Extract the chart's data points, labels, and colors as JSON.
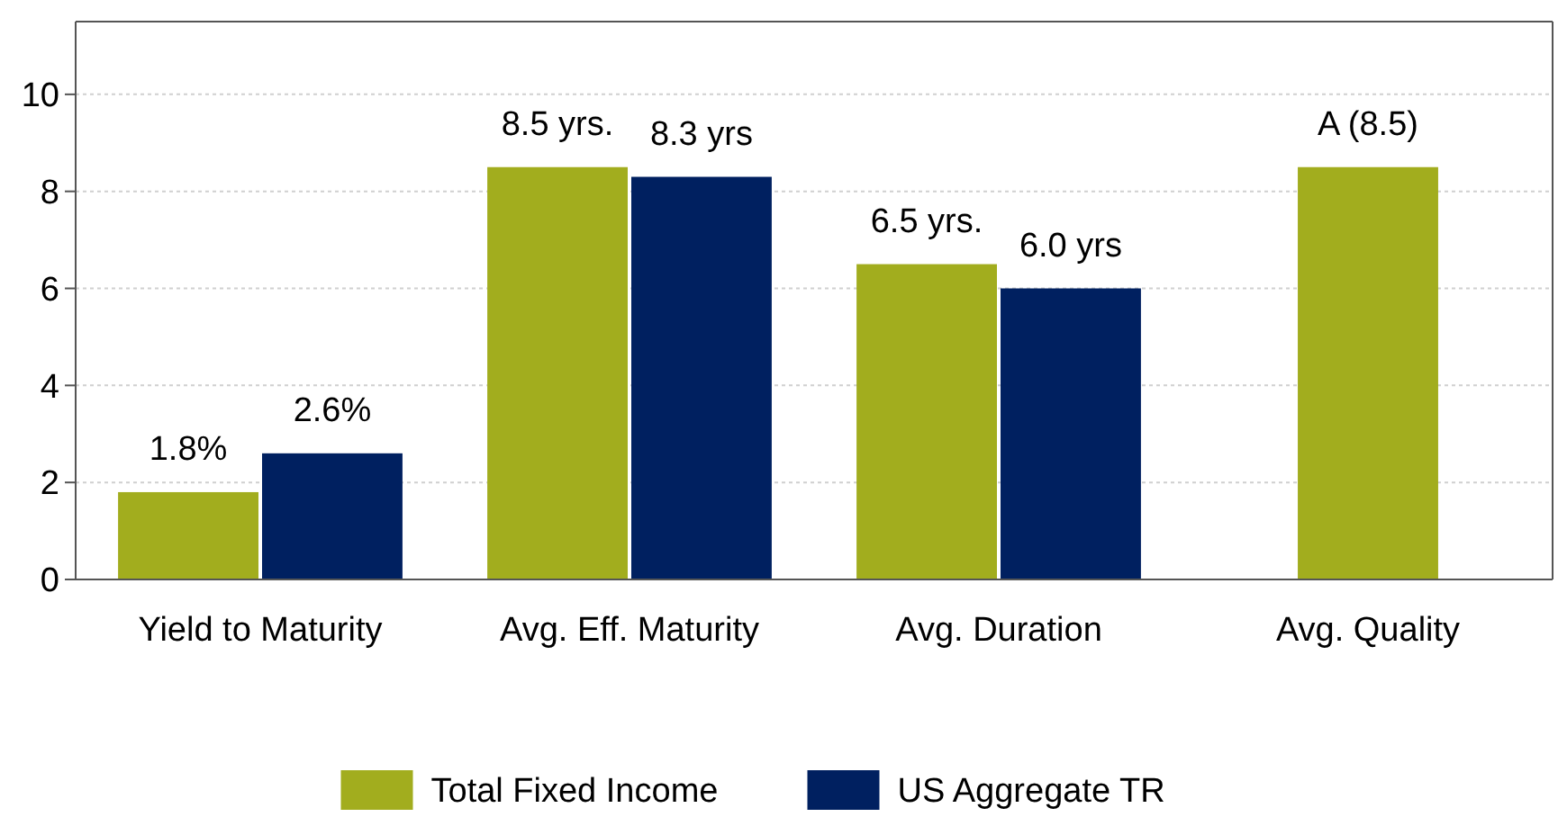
{
  "chart_data": {
    "type": "bar",
    "categories": [
      "Yield to Maturity",
      "Avg. Eff. Maturity",
      "Avg. Duration",
      "Avg. Quality"
    ],
    "series": [
      {
        "name": "Total Fixed Income",
        "color": "#a2ad1e",
        "values": [
          1.8,
          8.5,
          6.5,
          8.5
        ],
        "value_labels": [
          "1.8%",
          "8.5 yrs.",
          "6.5 yrs.",
          "A (8.5)"
        ]
      },
      {
        "name": "US Aggregate TR",
        "color": "#002060",
        "values": [
          2.6,
          8.3,
          6.0,
          null
        ],
        "value_labels": [
          "2.6%",
          "8.3 yrs",
          "6.0 yrs",
          null
        ]
      }
    ],
    "ylim": [
      0,
      11.5
    ],
    "yticks": [
      0,
      2,
      4,
      6,
      8,
      10
    ],
    "grid": "y",
    "legend": "bottom"
  }
}
